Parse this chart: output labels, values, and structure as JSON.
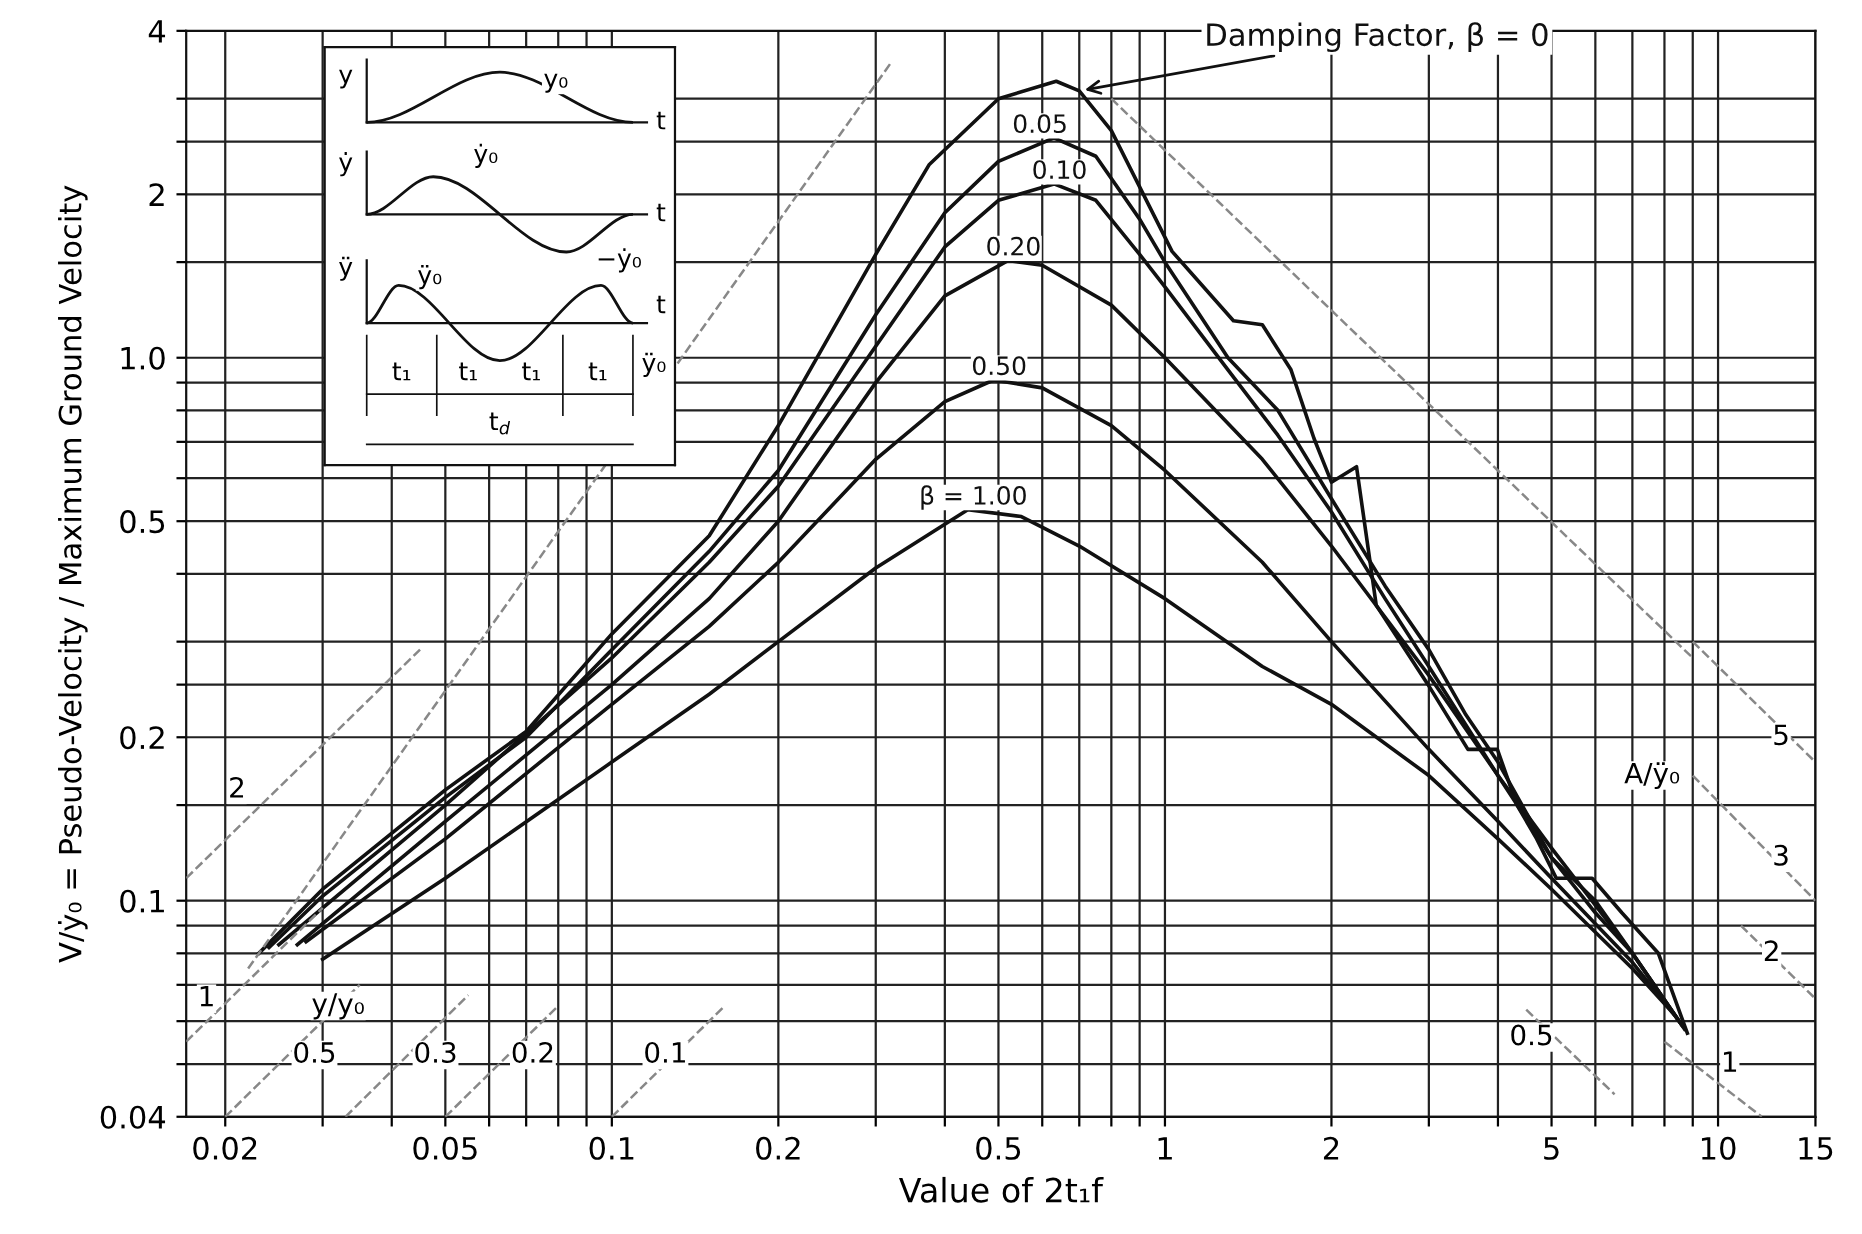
{
  "chart_data": {
    "type": "line",
    "xlabel": "Value of 2t₁f",
    "ylabel": "V/ẏ₀ = Pseudo-Velocity / Maximum Ground Velocity",
    "log": "xy",
    "grid": true,
    "legend": false,
    "marker": "none",
    "line_style": "solid",
    "xlim": [
      0.017,
      15
    ],
    "ylim": [
      0.04,
      4
    ],
    "xticks": [
      0.02,
      {
        "value": 0.03,
        "label": null
      },
      {
        "value": 0.04,
        "label": null
      },
      0.05,
      {
        "value": 0.06,
        "label": null
      },
      {
        "value": 0.07,
        "label": null
      },
      {
        "value": 0.08,
        "label": null
      },
      {
        "value": 0.09,
        "label": null
      },
      0.1,
      0.2,
      {
        "value": 0.3,
        "label": null
      },
      {
        "value": 0.4,
        "label": null
      },
      0.5,
      {
        "value": 0.6,
        "label": null
      },
      {
        "value": 0.7,
        "label": null
      },
      {
        "value": 0.8,
        "label": null
      },
      {
        "value": 0.9,
        "label": null
      },
      1,
      2,
      {
        "value": 3,
        "label": null
      },
      {
        "value": 4,
        "label": null
      },
      5,
      {
        "value": 6,
        "label": null
      },
      {
        "value": 7,
        "label": null
      },
      {
        "value": 8,
        "label": null
      },
      {
        "value": 9,
        "label": null
      },
      10,
      15
    ],
    "yticks": [
      0.04,
      {
        "value": 0.05,
        "label": null
      },
      {
        "value": 0.06,
        "label": null
      },
      {
        "value": 0.07,
        "label": null
      },
      {
        "value": 0.08,
        "label": null
      },
      {
        "value": 0.09,
        "label": null
      },
      0.1,
      {
        "value": 0.15,
        "label": null
      },
      0.2,
      {
        "value": 0.25,
        "label": null
      },
      {
        "value": 0.3,
        "label": null
      },
      {
        "value": 0.4,
        "label": null
      },
      0.5,
      {
        "value": 0.6,
        "label": null
      },
      {
        "value": 0.7,
        "label": null
      },
      {
        "value": 0.8,
        "label": null
      },
      {
        "value": 0.9,
        "label": null
      },
      {
        "value": 1,
        "label": "1.0"
      },
      {
        "value": 1.5,
        "label": null
      },
      2,
      {
        "value": 2.5,
        "label": null
      },
      {
        "value": 3,
        "label": null
      },
      4
    ],
    "series": [
      {
        "name": "Damping Factor, β = 0",
        "color": "#111111",
        "x": [
          0.023,
          0.03,
          0.05,
          0.07,
          0.1,
          0.15,
          0.2,
          0.3,
          0.375,
          0.5,
          0.636,
          0.7,
          0.8,
          1.03,
          1.33,
          1.5,
          1.69,
          1.86,
          2.0,
          2.22,
          2.41,
          2.99,
          3.53,
          3.99,
          4.33,
          4.7,
          5.1,
          5.92,
          6.7,
          7.8,
          8.8
        ],
        "values": [
          0.08,
          0.105,
          0.16,
          0.205,
          0.31,
          0.47,
          0.75,
          1.55,
          2.27,
          3.0,
          3.23,
          3.1,
          2.62,
          1.57,
          1.17,
          1.15,
          0.95,
          0.71,
          0.59,
          0.63,
          0.35,
          0.25,
          0.19,
          0.19,
          0.15,
          0.13,
          0.11,
          0.11,
          0.095,
          0.08,
          0.057
        ]
      },
      {
        "name": "0.05",
        "color": "#111111",
        "x": [
          0.024,
          0.03,
          0.05,
          0.07,
          0.1,
          0.15,
          0.2,
          0.3,
          0.4,
          0.5,
          0.63,
          0.75,
          0.9,
          1.0,
          1.3,
          1.6,
          2.0,
          2.5,
          3.0,
          3.5,
          4.0,
          5.0,
          6.0,
          7.0,
          8.7
        ],
        "values": [
          0.082,
          0.102,
          0.155,
          0.2,
          0.29,
          0.44,
          0.62,
          1.2,
          1.85,
          2.3,
          2.54,
          2.35,
          1.8,
          1.5,
          1.0,
          0.8,
          0.55,
          0.38,
          0.29,
          0.22,
          0.18,
          0.12,
          0.1,
          0.08,
          0.058
        ]
      },
      {
        "name": "0.10",
        "color": "#111111",
        "x": [
          0.025,
          0.05,
          0.1,
          0.15,
          0.2,
          0.3,
          0.4,
          0.5,
          0.63,
          0.75,
          0.9,
          1.0,
          1.3,
          1.6,
          2.0,
          2.5,
          3.0,
          4.0,
          5.0,
          6.0,
          7.0,
          8.6
        ],
        "values": [
          0.083,
          0.15,
          0.28,
          0.42,
          0.58,
          1.05,
          1.6,
          1.95,
          2.09,
          1.95,
          1.55,
          1.35,
          0.95,
          0.72,
          0.52,
          0.36,
          0.27,
          0.17,
          0.12,
          0.095,
          0.08,
          0.059
        ]
      },
      {
        "name": "0.20",
        "color": "#111111",
        "x": [
          0.027,
          0.05,
          0.1,
          0.15,
          0.2,
          0.3,
          0.4,
          0.52,
          0.6,
          0.8,
          1.0,
          1.5,
          2.0,
          3.0,
          4.0,
          5.0,
          7.0,
          8.5
        ],
        "values": [
          0.083,
          0.14,
          0.25,
          0.36,
          0.5,
          0.9,
          1.3,
          1.51,
          1.48,
          1.25,
          1.0,
          0.65,
          0.45,
          0.26,
          0.17,
          0.125,
          0.08,
          0.06
        ]
      },
      {
        "name": "0.50",
        "color": "#111111",
        "x": [
          0.028,
          0.05,
          0.1,
          0.15,
          0.2,
          0.3,
          0.4,
          0.49,
          0.6,
          0.8,
          1.0,
          1.5,
          2.0,
          3.0,
          4.0,
          5.0,
          7.0,
          8.4
        ],
        "values": [
          0.084,
          0.13,
          0.23,
          0.32,
          0.42,
          0.65,
          0.83,
          0.91,
          0.88,
          0.75,
          0.62,
          0.42,
          0.3,
          0.19,
          0.14,
          0.11,
          0.077,
          0.061
        ]
      },
      {
        "name": "β = 1.00",
        "color": "#111111",
        "x": [
          0.03,
          0.05,
          0.1,
          0.15,
          0.2,
          0.3,
          0.44,
          0.55,
          0.7,
          1.0,
          1.5,
          2.0,
          3.0,
          4.0,
          5.0,
          7.0,
          8.3
        ],
        "values": [
          0.078,
          0.11,
          0.18,
          0.24,
          0.3,
          0.41,
          0.525,
          0.51,
          0.45,
          0.36,
          0.27,
          0.23,
          0.17,
          0.13,
          0.105,
          0.075,
          0.062
        ]
      },
      {
        "color": "#888888",
        "line_style": "dashed",
        "x": [
          0.022,
          0.32
        ],
        "values": [
          0.075,
          3.5
        ]
      },
      {
        "color": "#888888",
        "line_style": "dashed",
        "x": [
          0.8,
          9
        ],
        "values": [
          3.0,
          0.28
        ]
      },
      {
        "color": "#888888",
        "line_style": "dashed",
        "x": [
          0.017,
          0.045
        ],
        "values": [
          0.11,
          0.29
        ]
      },
      {
        "color": "#888888",
        "line_style": "dashed",
        "x": [
          0.017,
          0.03
        ],
        "values": [
          0.055,
          0.097
        ]
      },
      {
        "color": "#888888",
        "line_style": "dashed",
        "x": [
          0.02,
          0.035
        ],
        "values": [
          0.04,
          0.07
        ]
      },
      {
        "color": "#888888",
        "line_style": "dashed",
        "x": [
          0.033,
          0.055
        ],
        "values": [
          0.04,
          0.067
        ]
      },
      {
        "color": "#888888",
        "line_style": "dashed",
        "x": [
          0.05,
          0.08
        ],
        "values": [
          0.04,
          0.064
        ]
      },
      {
        "color": "#888888",
        "line_style": "dashed",
        "x": [
          0.1,
          0.16
        ],
        "values": [
          0.04,
          0.064
        ]
      },
      {
        "color": "#888888",
        "line_style": "dashed",
        "x": [
          9,
          15
        ],
        "values": [
          0.3,
          0.18
        ]
      },
      {
        "color": "#888888",
        "line_style": "dashed",
        "x": [
          9,
          15
        ],
        "values": [
          0.17,
          0.1
        ]
      },
      {
        "color": "#888888",
        "line_style": "dashed",
        "x": [
          11,
          15
        ],
        "values": [
          0.09,
          0.066
        ]
      },
      {
        "color": "#888888",
        "line_style": "dashed",
        "x": [
          8,
          12
        ],
        "values": [
          0.055,
          0.04
        ]
      },
      {
        "color": "#888888",
        "line_style": "dashed",
        "x": [
          4.5,
          6.5
        ],
        "values": [
          0.063,
          0.044
        ]
      }
    ],
    "annotations": [
      {
        "text": "y/y₀",
        "x": 0.032,
        "y": 0.064
      },
      {
        "text": "A/ÿ₀",
        "x": 7.6,
        "y": 0.17
      },
      {
        "text": "2",
        "x": 0.021,
        "y": 0.16
      },
      {
        "text": "1",
        "x": 0.0185,
        "y": 0.066
      },
      {
        "text": "0.5",
        "x": 0.029,
        "y": 0.052
      },
      {
        "text": "0.3",
        "x": 0.048,
        "y": 0.052
      },
      {
        "text": "0.2",
        "x": 0.072,
        "y": 0.052
      },
      {
        "text": "0.1",
        "x": 0.125,
        "y": 0.052
      },
      {
        "text": "5",
        "x": 13,
        "y": 0.2
      },
      {
        "text": "3",
        "x": 13,
        "y": 0.12
      },
      {
        "text": "2",
        "x": 12.5,
        "y": 0.08
      },
      {
        "text": "1",
        "x": 10.5,
        "y": 0.05
      },
      {
        "text": "0.5",
        "x": 4.6,
        "y": 0.056
      },
      "y",
      "y₀",
      "t",
      "ẏ",
      "ẏ₀",
      "t",
      "ÿ",
      "ÿ₀",
      "−ẏ₀",
      "t",
      "t₁",
      "t₁",
      "t₁",
      "t₁",
      "ÿ₀",
      "t$_{d}$"
    ]
  }
}
